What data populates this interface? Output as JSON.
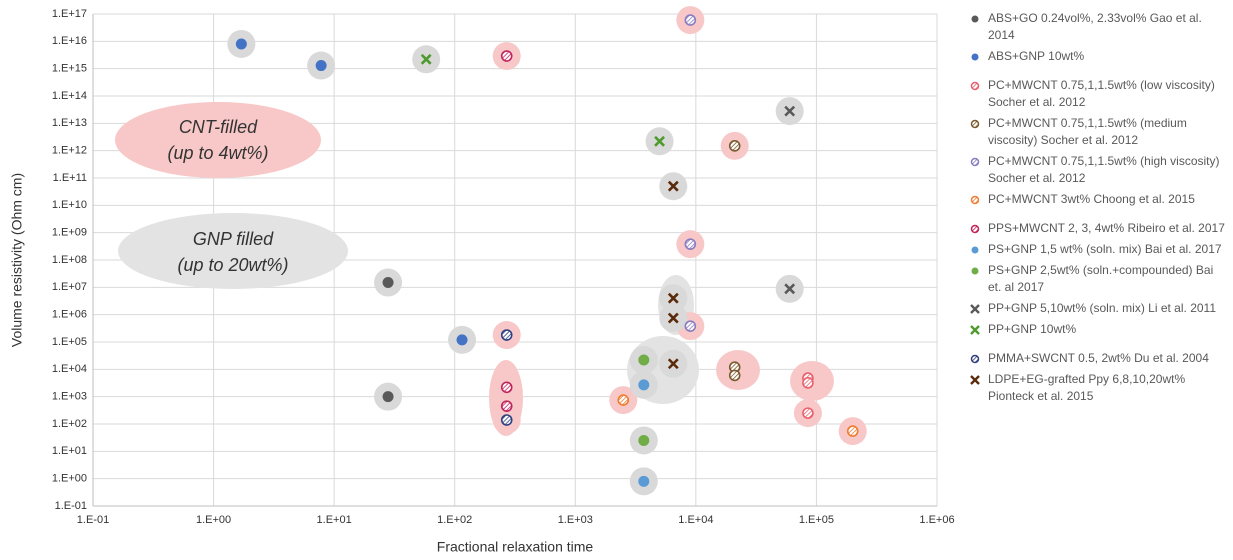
{
  "chart_data": {
    "type": "scatter",
    "x_label": "Fractional relaxation time",
    "y_label": "Volume resistivity (Ohm cm)",
    "xscale": "log",
    "yscale": "log",
    "grid": true,
    "xlim": [
      0.1,
      1000000
    ],
    "xticks": [
      {
        "value": 0.1,
        "label": "1.E-01"
      },
      {
        "value": 1,
        "label": "1.E+00"
      },
      {
        "value": 10,
        "label": "1.E+01"
      },
      {
        "value": 100,
        "label": "1.E+02"
      },
      {
        "value": 1000,
        "label": "1.E+03"
      },
      {
        "value": 10000,
        "label": "1.E+04"
      },
      {
        "value": 100000,
        "label": "1.E+05"
      },
      {
        "value": 1000000,
        "label": "1.E+06"
      }
    ],
    "ylim": [
      0.1,
      1e+17
    ],
    "yticks": [
      {
        "value": 0.1,
        "label": "1.E-01"
      },
      {
        "value": 1,
        "label": "1.E+00"
      },
      {
        "value": 10,
        "label": "1.E+01"
      },
      {
        "value": 100,
        "label": "1.E+02"
      },
      {
        "value": 1000,
        "label": "1.E+03"
      },
      {
        "value": 10000,
        "label": "1.E+04"
      },
      {
        "value": 100000,
        "label": "1.E+05"
      },
      {
        "value": 1000000,
        "label": "1.E+06"
      },
      {
        "value": 10000000,
        "label": "1.E+07"
      },
      {
        "value": 100000000,
        "label": "1.E+08"
      },
      {
        "value": 1000000000,
        "label": "1.E+09"
      },
      {
        "value": 10000000000,
        "label": "1.E+10"
      },
      {
        "value": 100000000000,
        "label": "1.E+11"
      },
      {
        "value": 1000000000000,
        "label": "1.E+12"
      },
      {
        "value": 10000000000000,
        "label": "1.E+13"
      },
      {
        "value": 100000000000000,
        "label": "1.E+14"
      },
      {
        "value": 1000000000000000,
        "label": "1.E+15"
      },
      {
        "value": 1e+16,
        "label": "1.E+16"
      },
      {
        "value": 1e+17,
        "label": "1.E+17"
      }
    ],
    "annotations": [
      "CNT-filled",
      "(up to 4wt%)",
      "GNP filled",
      "(up to 20wt%)"
    ],
    "series": [
      {
        "name": "ABS+GO 0.24vol%, 2.33vol% Gao et al. 2014",
        "marker": "dot",
        "color": "#595959",
        "halo": "#d9d9d9",
        "x": [
          28,
          28
        ],
        "values": [
          15000000,
          1000
        ]
      },
      {
        "name": "ABS+GNP 10wt%",
        "marker": "dot",
        "color": "#4472c4",
        "halo": "#d9d9d9",
        "x": [
          1.7,
          7.8,
          115
        ],
        "values": [
          8000000000000000,
          1300000000000000,
          120000
        ]
      },
      {
        "name": "PC+MWCNT 0.75,1,1.5wt% (low viscosity)  Socher et al. 2012",
        "marker": "hatch",
        "color": "#e8606e",
        "halo": "#f8c8c8",
        "x": [
          85000,
          85000,
          85000
        ],
        "values": [
          4800,
          3200,
          250
        ]
      },
      {
        "name": "PC+MWCNT 0.75,1,1.5wt% (medium viscosity) Socher et al. 2012",
        "marker": "hatch",
        "color": "#7a5a2e",
        "halo": "#f8c8c8",
        "x": [
          21000,
          21000,
          21000
        ],
        "values": [
          1500000000000,
          12000,
          6000
        ]
      },
      {
        "name": "PC+MWCNT 0.75,1,1.5wt% (high viscosity) Socher et al. 2012",
        "marker": "hatch",
        "color": "#8a7cc0",
        "halo": "#f8c8c8",
        "x": [
          9000,
          9000,
          9000
        ],
        "values": [
          60000000000000000,
          380000000,
          380000
        ]
      },
      {
        "name": "PC+MWCNT 3wt% Choong et al. 2015",
        "marker": "hatch",
        "color": "#ed7d31",
        "halo": "#f8c8c8",
        "x": [
          2500,
          200000
        ],
        "values": [
          750,
          55
        ]
      },
      {
        "name": "PPS+MWCNT 2, 3, 4wt% Ribeiro et al. 2017",
        "marker": "hatch",
        "color": "#c0245c",
        "halo": "#f8c8c8",
        "x": [
          270,
          270,
          270
        ],
        "values": [
          2900000000000000,
          2200,
          450
        ]
      },
      {
        "name": "PS+GNP 1,5 wt% (soln. mix) Bai et al. 2017",
        "marker": "dot",
        "color": "#5b9bd5",
        "halo": "#d9d9d9",
        "x": [
          3700,
          3700
        ],
        "values": [
          2700,
          0.8
        ]
      },
      {
        "name": "PS+GNP 2,5wt% (soln.+compounded) Bai et. al 2017",
        "marker": "dot",
        "color": "#70ad47",
        "halo": "#d9d9d9",
        "x": [
          3700,
          3700
        ],
        "values": [
          22000,
          25
        ]
      },
      {
        "name": "PP+GNP 5,10wt% (soln. mix) Li et al. 2011",
        "marker": "x",
        "color": "#595959",
        "halo": "#d9d9d9",
        "x": [
          60000,
          60000
        ],
        "values": [
          28000000000000,
          8800000
        ]
      },
      {
        "name": "PP+GNP 10wt%",
        "marker": "x",
        "color": "#4e9a2e",
        "halo": "#d9d9d9",
        "x": [
          58,
          5000
        ],
        "values": [
          2200000000000000,
          2200000000000
        ]
      },
      {
        "name": "PMMA+SWCNT 0.5, 2wt% Du et al. 2004",
        "marker": "hatch",
        "color": "#2f3f7f",
        "halo": "#f8c8c8",
        "x": [
          270,
          270
        ],
        "values": [
          180000,
          140
        ]
      },
      {
        "name": "LDPE+EG-grafted Ppy 6,8,10,20wt% Pionteck et al. 2015",
        "marker": "x",
        "color": "#5a2a0a",
        "halo": "#d9d9d9",
        "x": [
          6500,
          6500,
          6500,
          6500
        ],
        "values": [
          50000000000,
          4000000,
          750000,
          16000
        ]
      }
    ]
  }
}
